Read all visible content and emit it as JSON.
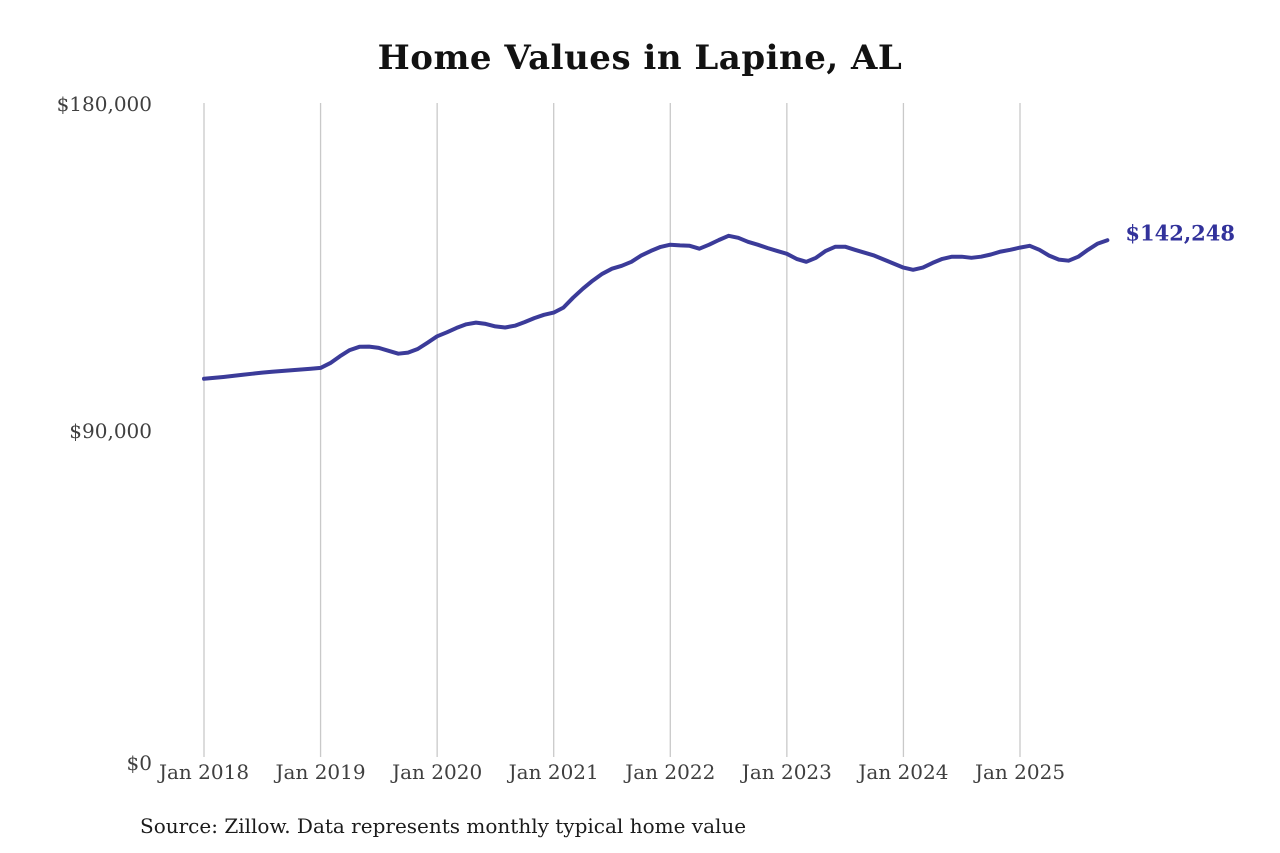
{
  "title": "Home Values in Lapine, AL",
  "source_note": "Source: Zillow. Data represents monthly typical home value",
  "end_label": "$142,248",
  "colors": {
    "line": "#3b3b99",
    "grid": "#c9c9c9",
    "axis_text": "#3f3f3f",
    "end_label_text": "#32329b",
    "background": "#ffffff"
  },
  "chart_data": {
    "type": "line",
    "title": "Home Values in Lapine, AL",
    "ylabel": "",
    "xlabel": "",
    "ylim": [
      0,
      180000
    ],
    "grid": "vertical-only",
    "legend": "none",
    "y_ticks": [
      {
        "label": "$180,000",
        "value": 180000
      },
      {
        "label": "$90,000",
        "value": 90000
      },
      {
        "label": "$0",
        "value": 0
      }
    ],
    "x_ticks": [
      {
        "label": "Jan 2018",
        "month_index": 0
      },
      {
        "label": "Jan 2019",
        "month_index": 12
      },
      {
        "label": "Jan 2020",
        "month_index": 24
      },
      {
        "label": "Jan 2021",
        "month_index": 36
      },
      {
        "label": "Jan 2022",
        "month_index": 48
      },
      {
        "label": "Jan 2023",
        "month_index": 60
      },
      {
        "label": "Jan 2024",
        "month_index": 72
      },
      {
        "label": "Jan 2025",
        "month_index": 84
      }
    ],
    "series_name": "Typical home value (monthly)",
    "x_start_month": "2018-01",
    "x_end_month": "2025-10",
    "x_frequency": "monthly",
    "values": [
      104100,
      104350,
      104600,
      104900,
      105200,
      105500,
      105800,
      106050,
      106250,
      106450,
      106650,
      106850,
      107100,
      108400,
      110300,
      112000,
      112900,
      112950,
      112600,
      111800,
      111000,
      111300,
      112300,
      114000,
      115800,
      116900,
      118100,
      119100,
      119550,
      119200,
      118500,
      118200,
      118700,
      119700,
      120800,
      121700,
      122300,
      123700,
      126400,
      128900,
      131100,
      133000,
      134400,
      135200,
      136300,
      138000,
      139300,
      140400,
      141000,
      140800,
      140700,
      139900,
      141000,
      142300,
      143450,
      142900,
      141800,
      141000,
      140100,
      139300,
      138500,
      137100,
      136300,
      137400,
      139300,
      140450,
      140450,
      139600,
      138800,
      138000,
      136900,
      135800,
      134700,
      134100,
      134700,
      136000,
      137100,
      137700,
      137700,
      137400,
      137700,
      138300,
      139100,
      139600,
      140200,
      140700,
      139600,
      138000,
      136900,
      136600,
      137700,
      139600,
      141300,
      142248
    ],
    "last_value": 142248,
    "last_value_label": "$142,248"
  }
}
